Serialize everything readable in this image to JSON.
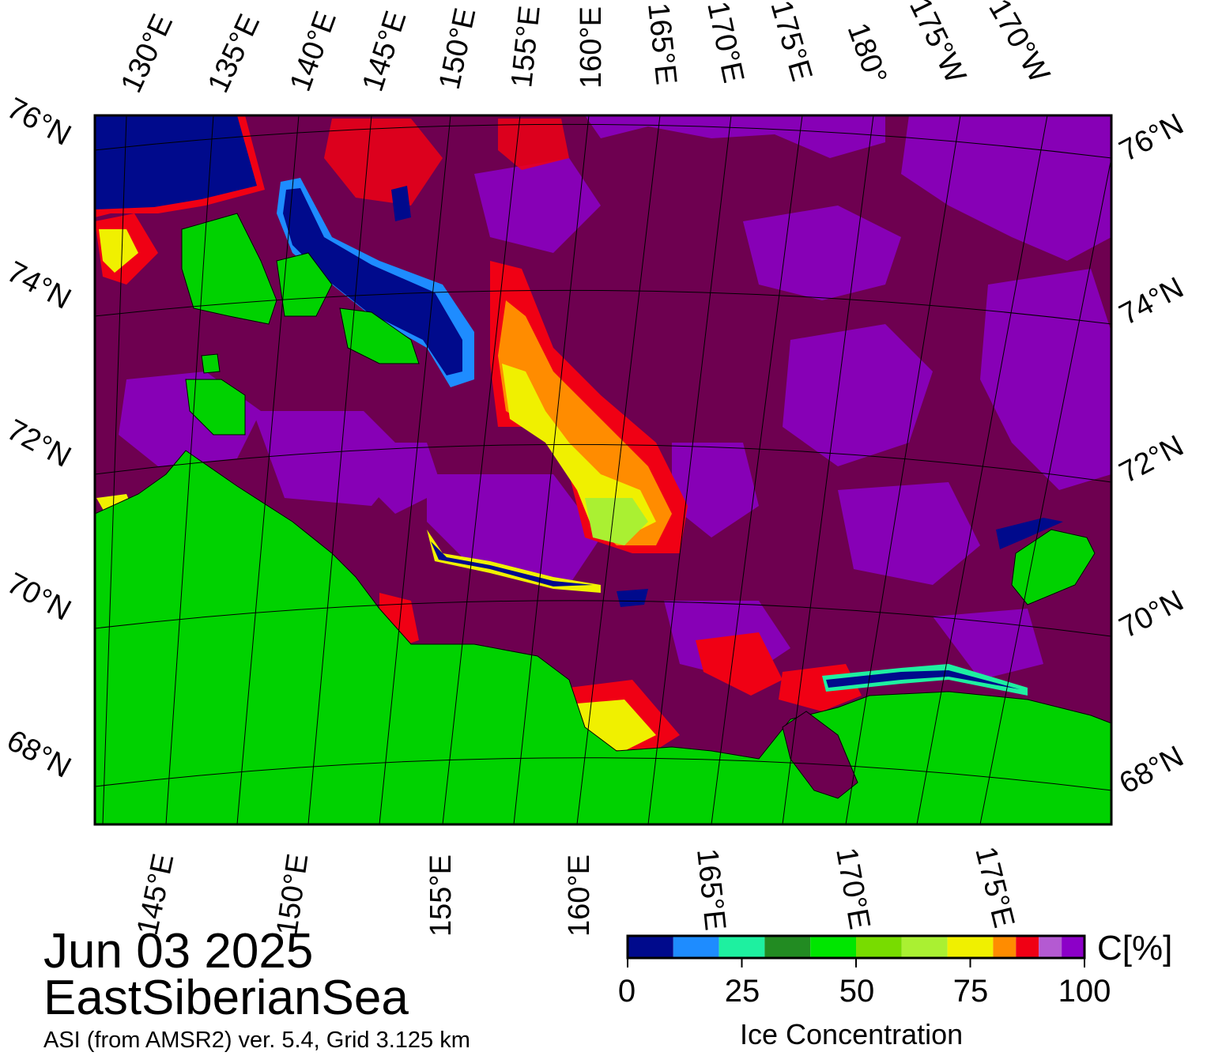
{
  "map": {
    "date": "Jun 03 2025",
    "region": "EastSiberianSea",
    "source": "ASI (from AMSR2) ver. 5.4,  Grid 3.125 km",
    "colors": {
      "water": "#6e0050",
      "land": "#00d200",
      "open_water": "#000a8c",
      "grid": "#000000"
    }
  },
  "graticule": {
    "top_labels": [
      "130°E",
      "135°E",
      "140°E",
      "145°E",
      "150°E",
      "155°E",
      "160°E",
      "165°E",
      "170°E",
      "175°E",
      "180°",
      "175°W",
      "170°W"
    ],
    "bottom_labels": [
      "145°E",
      "150°E",
      "155°E",
      "160°E",
      "165°E",
      "170°E",
      "175°E"
    ],
    "lat_labels": [
      "76°N",
      "74°N",
      "72°N",
      "70°N",
      "68°N"
    ]
  },
  "colorbar": {
    "title": "Ice Concentration",
    "unit": "C[%]",
    "ticks": [
      "0",
      "25",
      "50",
      "75",
      "100"
    ],
    "bins": [
      {
        "from": 0,
        "to": 10,
        "color": "#000a8c"
      },
      {
        "from": 10,
        "to": 20,
        "color": "#1e8cff"
      },
      {
        "from": 20,
        "to": 30,
        "color": "#1ef0a0"
      },
      {
        "from": 30,
        "to": 40,
        "color": "#228b22"
      },
      {
        "from": 40,
        "to": 50,
        "color": "#00e600"
      },
      {
        "from": 50,
        "to": 60,
        "color": "#78dc00"
      },
      {
        "from": 60,
        "to": 70,
        "color": "#aaf032"
      },
      {
        "from": 70,
        "to": 80,
        "color": "#f0f000"
      },
      {
        "from": 80,
        "to": 85,
        "color": "#ff8c00"
      },
      {
        "from": 85,
        "to": 90,
        "color": "#f00014"
      },
      {
        "from": 90,
        "to": 95,
        "color": "#b45ad2"
      },
      {
        "from": 95,
        "to": 100,
        "color": "#8c00c8"
      }
    ]
  }
}
